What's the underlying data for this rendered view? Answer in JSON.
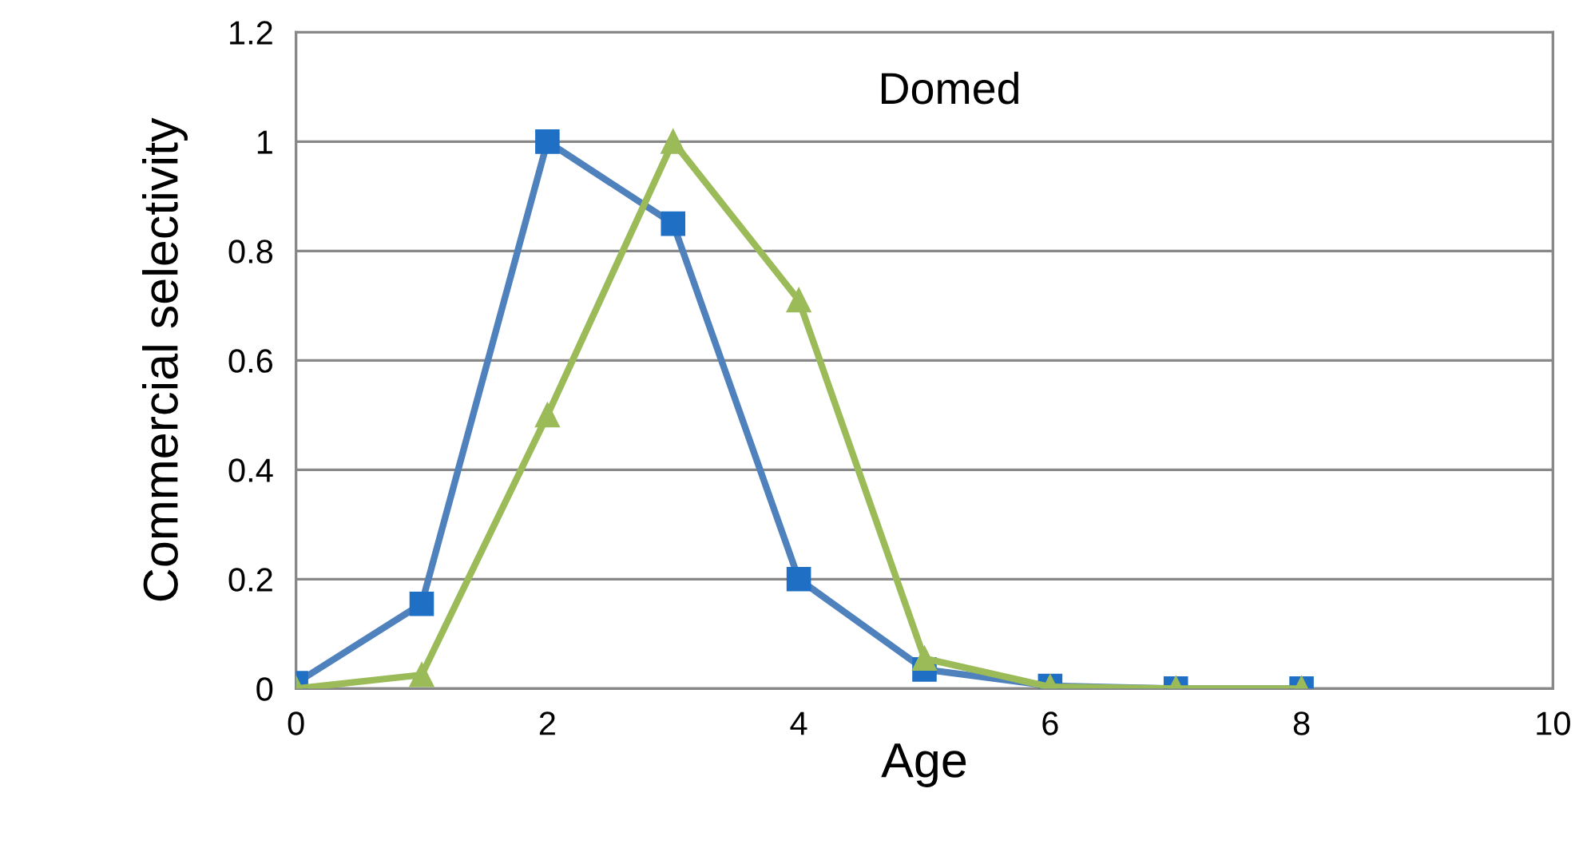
{
  "chart_data": {
    "type": "line",
    "xlabel": "Age",
    "ylabel": "Commercial selectivity",
    "annotations": [
      "Domed"
    ],
    "x": [
      0,
      1,
      2,
      3,
      4,
      5,
      6,
      7,
      8
    ],
    "series": [
      {
        "color": "#4f81bd",
        "values": [
          0.01,
          0.155,
          1.0,
          0.85,
          0.2,
          0.035,
          0.005,
          0,
          0
        ],
        "marker": "square"
      },
      {
        "color": "#9bbb59",
        "values": [
          0,
          0.025,
          0.5,
          1.0,
          0.71,
          0.055,
          0.003,
          0,
          0
        ],
        "marker": "triangle"
      }
    ],
    "xlim": [
      0,
      10
    ],
    "xticks": [
      0,
      2,
      4,
      6,
      8,
      10
    ],
    "ylim": [
      0,
      1.2
    ],
    "yticks": [
      0,
      0.2,
      0.4,
      0.6,
      0.8,
      1,
      1.2
    ],
    "grid": "y",
    "legend": false,
    "line_style": "solid"
  }
}
